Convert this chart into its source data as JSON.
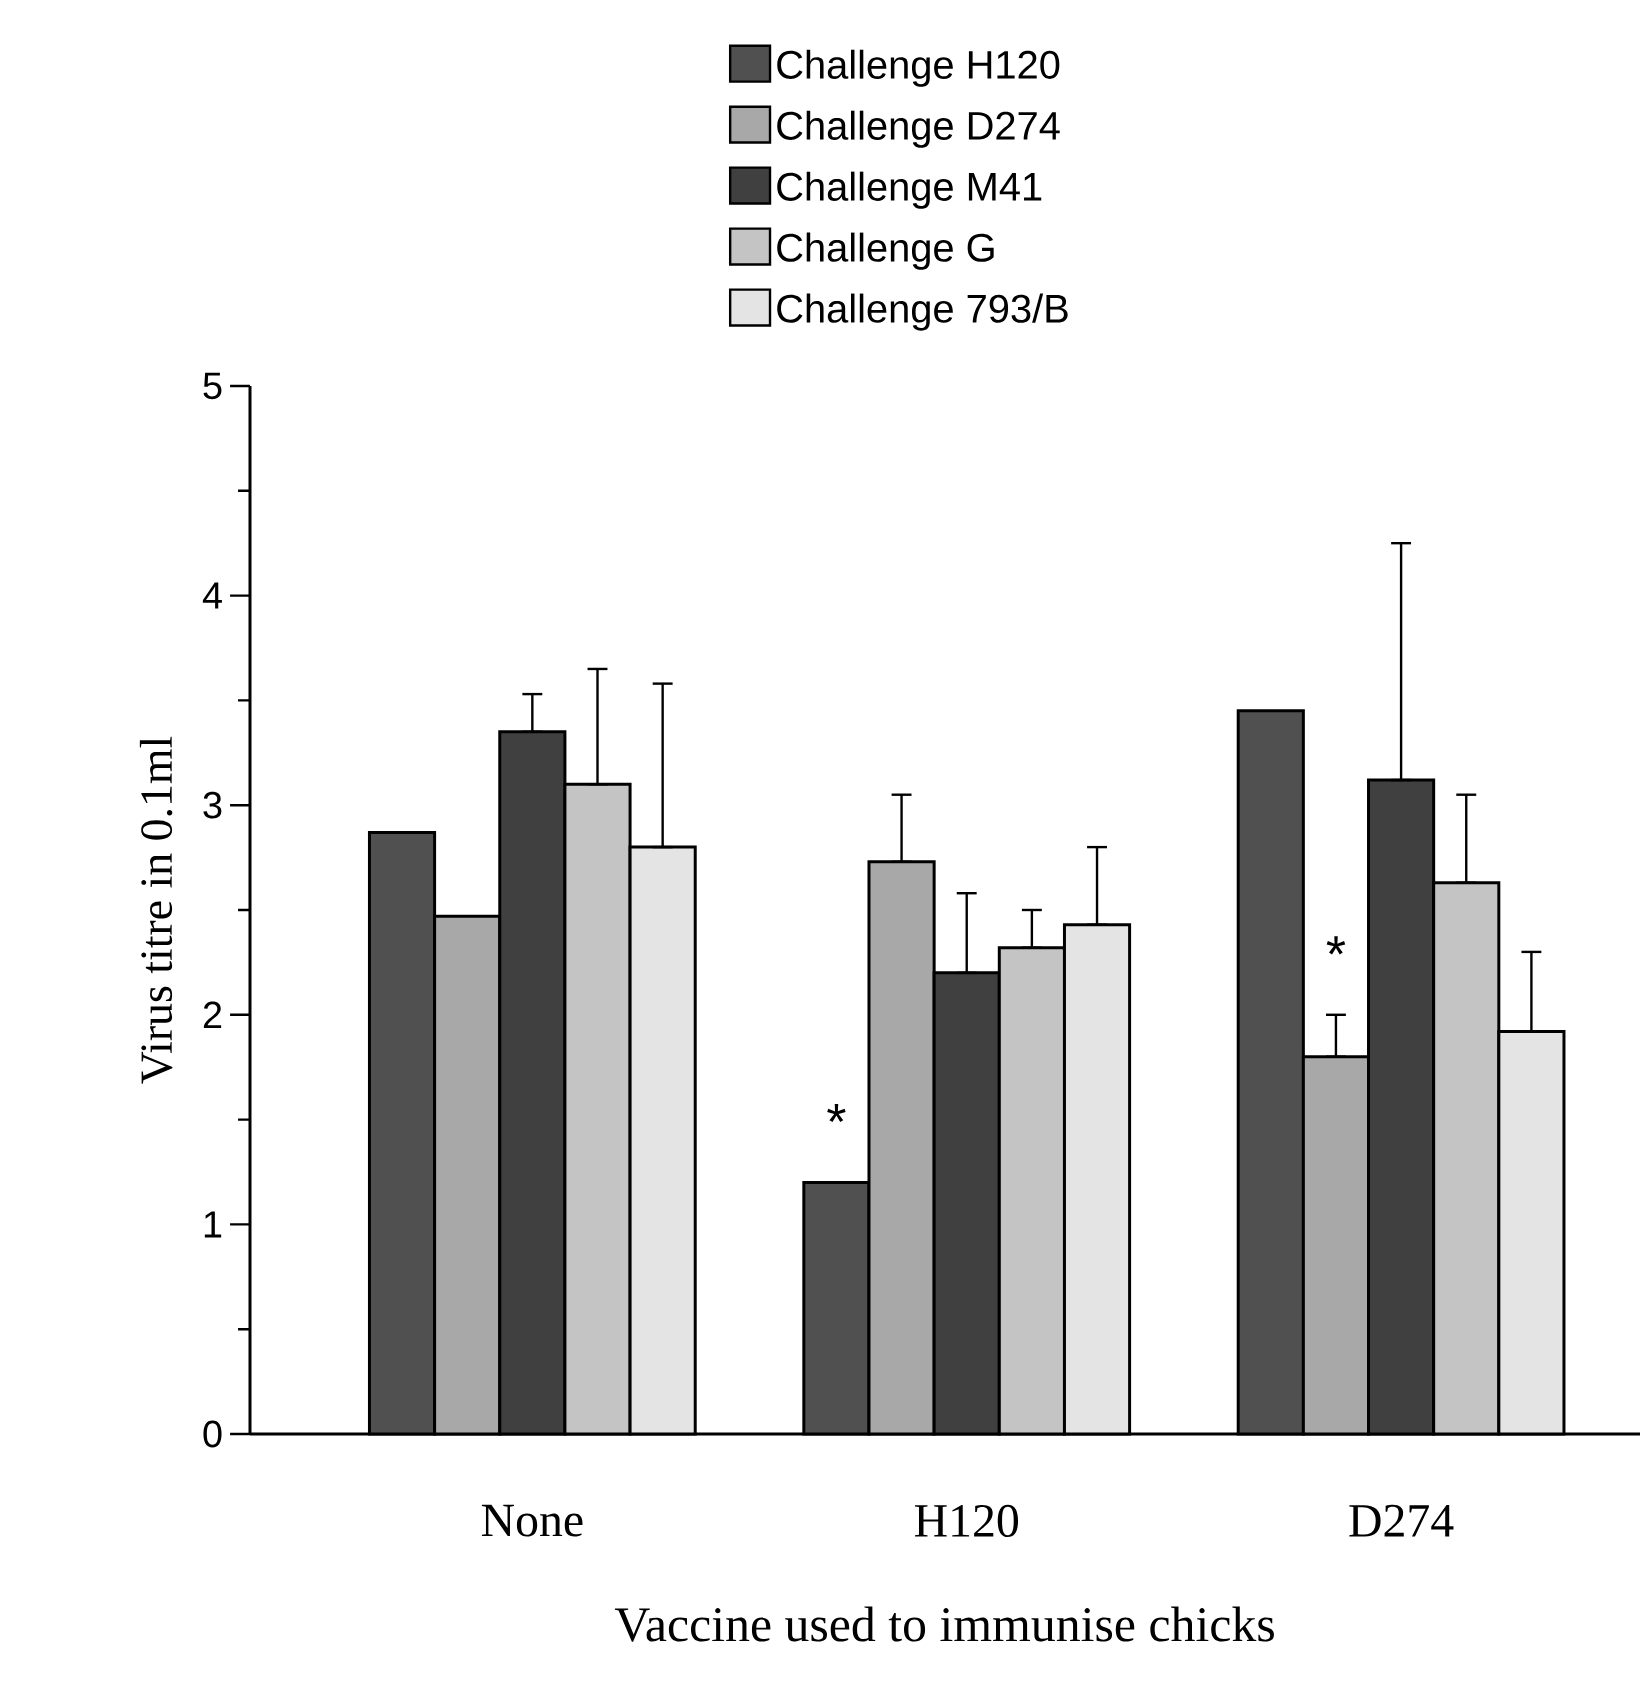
{
  "chart_data": {
    "type": "bar",
    "xlabel": "Vaccine used to immunise chicks",
    "ylabel": "Virus titre in 0.1ml",
    "categories": [
      "None",
      "H120",
      "D274"
    ],
    "series": [
      {
        "name": "Challenge H120",
        "color": "#505050",
        "values": [
          2.87,
          1.2,
          3.45
        ]
      },
      {
        "name": "Challenge D274",
        "color": "#a8a8a8",
        "values": [
          2.47,
          2.73,
          1.8
        ],
        "errors": [
          null,
          [
            2.73,
            3.05
          ],
          [
            1.8,
            2.0
          ]
        ]
      },
      {
        "name": "Challenge M41",
        "color": "#404040",
        "values": [
          3.35,
          2.2,
          3.12
        ],
        "errors": [
          [
            3.35,
            3.53
          ],
          [
            2.2,
            2.58
          ],
          [
            3.12,
            4.25
          ]
        ]
      },
      {
        "name": "Challenge G",
        "color": "#c4c4c4",
        "values": [
          3.1,
          2.32,
          2.63
        ],
        "errors": [
          [
            3.1,
            3.65
          ],
          [
            2.32,
            2.5
          ],
          [
            2.63,
            3.05
          ]
        ]
      },
      {
        "name": "Challenge 793/B",
        "color": "#e4e4e4",
        "values": [
          2.8,
          2.43,
          1.92
        ],
        "errors": [
          [
            2.8,
            3.58
          ],
          [
            2.43,
            2.8
          ],
          [
            1.92,
            2.3
          ]
        ]
      }
    ],
    "annotations": [
      "*",
      "*"
    ],
    "ylim": [
      0,
      5
    ],
    "yticks": [
      0,
      1,
      2,
      3,
      4,
      5
    ],
    "grid": false,
    "legend": "top"
  }
}
